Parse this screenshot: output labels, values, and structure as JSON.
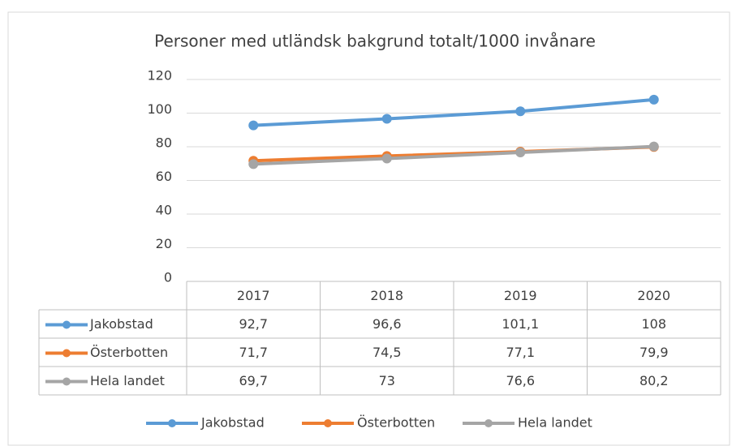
{
  "chart_data": {
    "type": "line",
    "title": "Personer med utländsk bakgrund totalt/1000 invånare",
    "categories": [
      "2017",
      "2018",
      "2019",
      "2020"
    ],
    "series": [
      {
        "name": "Jakobstad",
        "color": "#5b9bd5",
        "values": [
          92.7,
          96.6,
          101.1,
          108
        ],
        "value_labels": [
          "92,7",
          "96,6",
          "101,1",
          "108"
        ]
      },
      {
        "name": "Österbotten",
        "color": "#ed7d31",
        "values": [
          71.7,
          74.5,
          77.1,
          79.9
        ],
        "value_labels": [
          "71,7",
          "74,5",
          "77,1",
          "79,9"
        ]
      },
      {
        "name": "Hela landet",
        "color": "#a5a5a5",
        "values": [
          69.7,
          73,
          76.6,
          80.2
        ],
        "value_labels": [
          "69,7",
          "73",
          "76,6",
          "80,2"
        ]
      }
    ],
    "ylim": [
      0,
      120
    ],
    "yticks": [
      0,
      20,
      40,
      60,
      80,
      100,
      120
    ],
    "grid": true,
    "legend": "bottom",
    "data_table": true
  }
}
